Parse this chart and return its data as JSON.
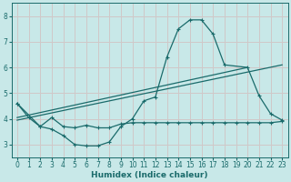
{
  "xlabel": "Humidex (Indice chaleur)",
  "xlim": [
    -0.5,
    23.5
  ],
  "ylim": [
    2.5,
    8.5
  ],
  "xticks": [
    0,
    1,
    2,
    3,
    4,
    5,
    6,
    7,
    8,
    9,
    10,
    11,
    12,
    13,
    14,
    15,
    16,
    17,
    18,
    19,
    20,
    21,
    22,
    23
  ],
  "yticks": [
    3,
    4,
    5,
    6,
    7,
    8
  ],
  "bg_color": "#c8e8e8",
  "line_color": "#1a6b6b",
  "grid_color": "#d0c8c8",
  "curve1_x": [
    0,
    1,
    2,
    3,
    4,
    5,
    6,
    7,
    8,
    9,
    10,
    11,
    12,
    13,
    14,
    15,
    16,
    17,
    18,
    20,
    21,
    22,
    23
  ],
  "curve1_y": [
    4.6,
    4.05,
    3.7,
    3.6,
    3.35,
    3.0,
    2.95,
    2.95,
    3.1,
    3.7,
    4.0,
    4.7,
    4.85,
    6.4,
    7.5,
    7.85,
    7.85,
    7.3,
    6.1,
    6.0,
    4.9,
    4.2,
    3.95
  ],
  "curve2_x": [
    0,
    2,
    3,
    4,
    5,
    6,
    7,
    8,
    9,
    10,
    11,
    12,
    13,
    14,
    15,
    16,
    17,
    18,
    19,
    20,
    21,
    22,
    23
  ],
  "curve2_y": [
    4.6,
    3.7,
    4.05,
    3.7,
    3.65,
    3.75,
    3.65,
    3.65,
    3.8,
    3.85,
    3.85,
    3.85,
    3.85,
    3.85,
    3.85,
    3.85,
    3.85,
    3.85,
    3.85,
    3.85,
    3.85,
    3.85,
    3.9
  ],
  "line3_x": [
    0,
    23
  ],
  "line3_y": [
    3.95,
    6.1
  ],
  "line4_x": [
    0,
    20
  ],
  "line4_y": [
    4.05,
    6.0
  ]
}
